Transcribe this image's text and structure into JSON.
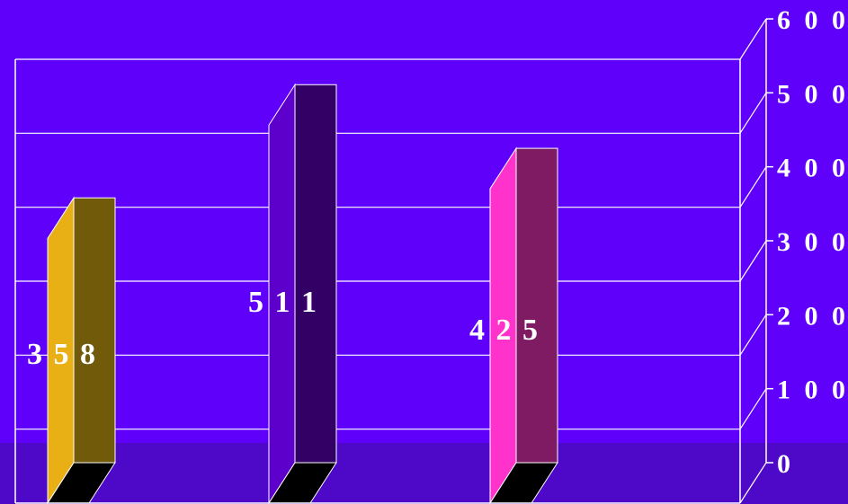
{
  "chart_data": {
    "type": "bar",
    "categories": [
      "",
      "",
      ""
    ],
    "values": [
      358,
      511,
      425
    ],
    "data_labels": [
      "3 5 8",
      "5 1 1",
      "4 2 5"
    ],
    "ylim": [
      0,
      600
    ],
    "yticks": [
      {
        "value": 0,
        "label": "0"
      },
      {
        "value": 100,
        "label": "1 0 0"
      },
      {
        "value": 200,
        "label": "2 0 0"
      },
      {
        "value": 300,
        "label": "3 0 0"
      },
      {
        "value": 400,
        "label": "4 0 0"
      },
      {
        "value": 500,
        "label": "5 0 0"
      },
      {
        "value": 600,
        "label": "6 0 0"
      }
    ],
    "grid": true,
    "legend": "none",
    "colors": {
      "background": "#5f00fb",
      "background_lower": "#4e08c8",
      "bar_front": [
        "#e9b016",
        "#5d00cc",
        "#ff33cc"
      ],
      "bar_side": [
        "#715a09",
        "#330066",
        "#7e1b63"
      ],
      "bar_floor": "#000000",
      "gridline": "#ffffff",
      "text": "#ffffff"
    }
  }
}
